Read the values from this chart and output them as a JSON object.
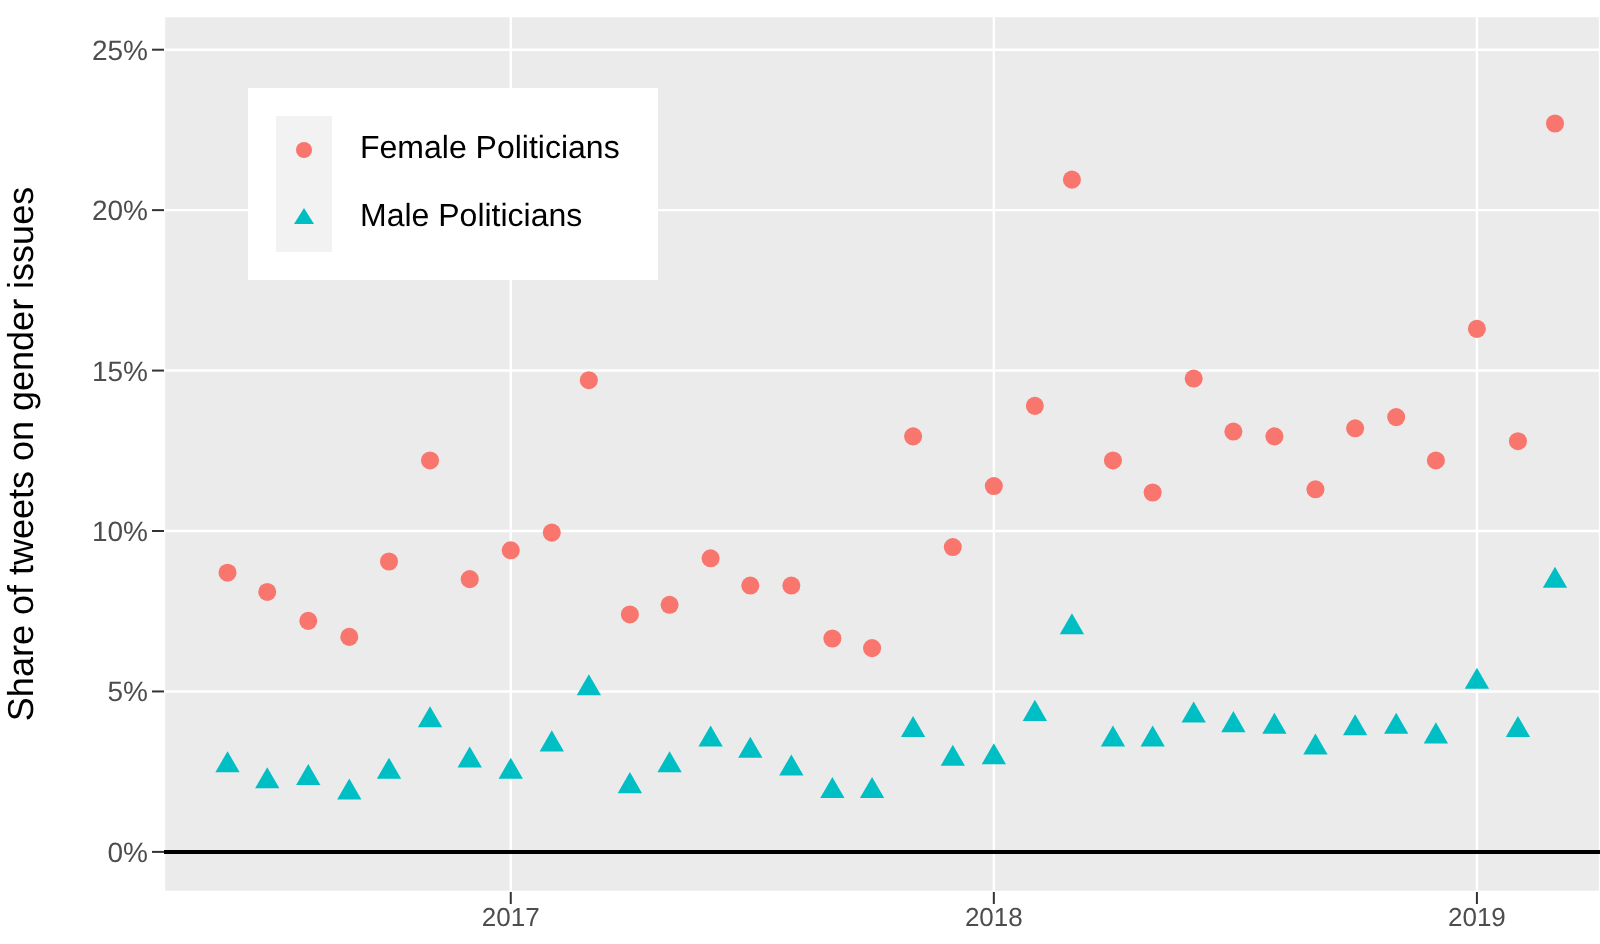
{
  "chart_data": {
    "type": "scatter",
    "ylabel": "Share of tweets on gender issues",
    "x": [
      "2016-06",
      "2016-07",
      "2016-08",
      "2016-09",
      "2016-10",
      "2016-11",
      "2016-12",
      "2017-01",
      "2017-02",
      "2017-03",
      "2017-04",
      "2017-05",
      "2017-06",
      "2017-07",
      "2017-08",
      "2017-09",
      "2017-10",
      "2017-11",
      "2017-12",
      "2018-01",
      "2018-02",
      "2018-03",
      "2018-04",
      "2018-05",
      "2018-06",
      "2018-07",
      "2018-08",
      "2018-09",
      "2018-10",
      "2018-11",
      "2018-12",
      "2019-01",
      "2019-02",
      "2019-03"
    ],
    "series": [
      {
        "name": "Female Politicians",
        "color": "#f8766d",
        "marker": "circle",
        "values": [
          8.7,
          8.1,
          7.2,
          6.7,
          9.05,
          12.2,
          8.5,
          9.4,
          9.95,
          14.7,
          7.4,
          7.7,
          9.15,
          8.3,
          8.3,
          6.65,
          6.35,
          12.95,
          9.5,
          11.4,
          13.9,
          20.95,
          12.2,
          11.2,
          14.75,
          13.1,
          12.95,
          11.3,
          13.2,
          13.55,
          12.2,
          16.3,
          12.8,
          22.7
        ]
      },
      {
        "name": "Male Politicians",
        "color": "#00bfc4",
        "marker": "triangle",
        "values": [
          2.7,
          2.2,
          2.3,
          1.85,
          2.5,
          4.1,
          2.85,
          2.5,
          3.35,
          5.1,
          2.05,
          2.7,
          3.5,
          3.15,
          2.6,
          1.9,
          1.9,
          3.8,
          2.9,
          2.95,
          4.3,
          7.0,
          3.5,
          3.5,
          4.25,
          3.95,
          3.9,
          3.25,
          3.85,
          3.9,
          3.6,
          5.3,
          3.8,
          8.45
        ]
      }
    ],
    "xlim": [
      "2016-04-14",
      "2019-04-04"
    ],
    "xticks": [
      {
        "value": "2017-01-01",
        "label": "2017"
      },
      {
        "value": "2018-01-01",
        "label": "2018"
      },
      {
        "value": "2019-01-01",
        "label": "2019"
      }
    ],
    "ylim": [
      -1.25,
      26.05
    ],
    "yticks": [
      {
        "value": 0,
        "label": "0%"
      },
      {
        "value": 5,
        "label": "5%"
      },
      {
        "value": 10,
        "label": "10%"
      },
      {
        "value": 15,
        "label": "15%"
      },
      {
        "value": 20,
        "label": "20%"
      },
      {
        "value": 25,
        "label": "25%"
      }
    ],
    "ref_lines": [
      {
        "axis": "y",
        "value": 0,
        "color": "#000000"
      }
    ],
    "grid": true,
    "legend": "top left"
  }
}
